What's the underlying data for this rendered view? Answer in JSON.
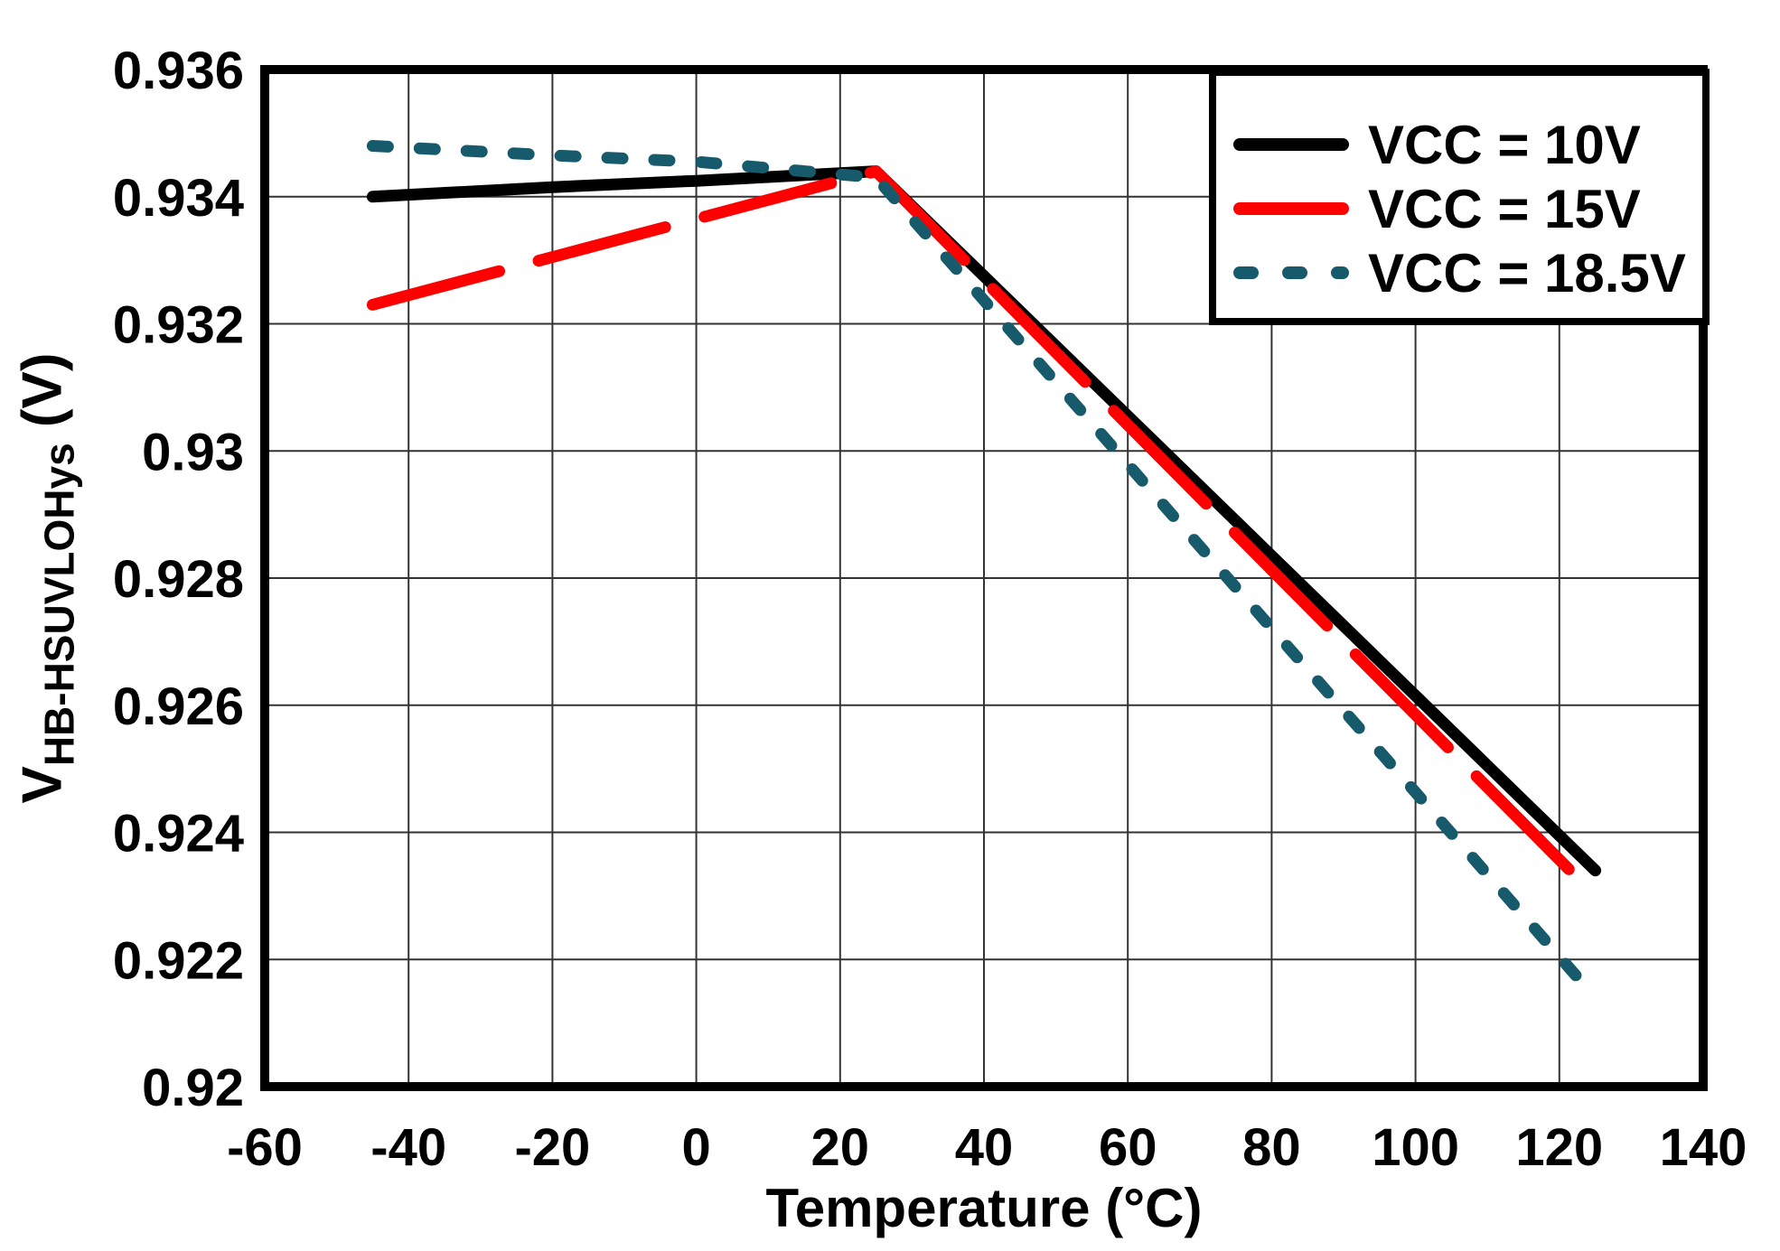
{
  "figure": {
    "background": "#FFFFFF",
    "xlabel": "Temperature (°C)",
    "ylabel": {
      "main": "V",
      "sub": "HB-HSUVLOHys",
      "unit": " (V)"
    }
  },
  "chart_data": {
    "type": "line",
    "title": "",
    "xlabel": "Temperature (°C)",
    "ylabel": "V_HB-HSUVLOHys (V)",
    "xlim": [
      -60,
      140
    ],
    "ylim": [
      0.92,
      0.936
    ],
    "grid": true,
    "grid_color": "#333333",
    "axis_color": "#000000",
    "legend_position": "top-right",
    "x_ticks": {
      "values": [
        -60,
        -40,
        -20,
        0,
        20,
        40,
        60,
        80,
        100,
        120,
        140
      ],
      "labels": [
        "-60",
        "-40",
        "-20",
        "0",
        "20",
        "40",
        "60",
        "80",
        "100",
        "120",
        "140"
      ]
    },
    "y_ticks": {
      "values": [
        0.936,
        0.934,
        0.932,
        0.93,
        0.928,
        0.926,
        0.924,
        0.922,
        0.92
      ],
      "labels": [
        "0.936",
        "0.934",
        "0.932",
        "0.93",
        "0.928",
        "0.926",
        "0.924",
        "0.922",
        "0.92"
      ]
    },
    "series": [
      {
        "name": "VCC = 10V",
        "color": "#000000",
        "dash": "solid",
        "x": [
          -45,
          -20,
          0,
          25,
          40,
          60,
          80,
          100,
          125
        ],
        "y": [
          0.934,
          0.93415,
          0.93425,
          0.9344,
          0.93275,
          0.93055,
          0.92835,
          0.92615,
          0.9234
        ]
      },
      {
        "name": "VCC = 15V",
        "color": "#FF0000",
        "dash": "long-dash",
        "x": [
          -45,
          -20,
          0,
          25,
          40,
          60,
          80,
          100,
          125
        ],
        "y": [
          0.9323,
          0.93305,
          0.93365,
          0.9344,
          0.93269,
          0.93041,
          0.92813,
          0.92585,
          0.923
        ]
      },
      {
        "name": "VCC = 18.5V",
        "color": "#175A6B",
        "dash": "dot",
        "x": [
          -45,
          -20,
          0,
          25,
          40,
          60,
          80,
          100,
          125
        ],
        "y": [
          0.9348,
          0.93465,
          0.93455,
          0.9343,
          0.93237,
          0.92979,
          0.92721,
          0.92463,
          0.9214
        ]
      }
    ],
    "legend_labels": [
      "VCC = 10V",
      "VCC = 15V",
      "VCC = 18.5V"
    ]
  }
}
